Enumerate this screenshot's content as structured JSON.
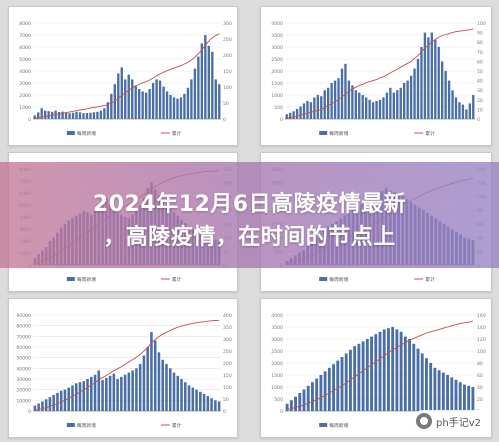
{
  "banner": {
    "line1": "2024年12月6日高陵疫情最新",
    "line2": "，高陵疫情，在时间的节点上"
  },
  "watermark": {
    "text": "ph手记v2"
  },
  "colors": {
    "bar": "#4a6fa5",
    "line": "#c0504d",
    "grid": "#e4e4e4",
    "axis": "#777777"
  },
  "chart_data": [
    {
      "type": "bar",
      "title": "",
      "left_ticks": [
        "8000",
        "7000",
        "6000",
        "5000",
        "4000",
        "3000",
        "2000",
        "1000",
        "0"
      ],
      "right_ticks": [
        "300",
        "250",
        "200",
        "150",
        "100",
        "50",
        "0"
      ],
      "ylim": [
        0,
        8000
      ],
      "y2lim": [
        0,
        300
      ],
      "legend": [
        "每周新增",
        "累计"
      ],
      "values": [
        300,
        550,
        900,
        700,
        650,
        600,
        700,
        580,
        620,
        500,
        480,
        520,
        600,
        550,
        480,
        500,
        520,
        560,
        600,
        700,
        900,
        1400,
        2100,
        2900,
        3800,
        4300,
        3300,
        3700,
        3300,
        2800,
        2500,
        2300,
        2200,
        2500,
        3000,
        3300,
        3200,
        2700,
        2300,
        2000,
        1800,
        1700,
        1800,
        2100,
        2600,
        3300,
        4200,
        5200,
        6300,
        7000,
        6100,
        5600,
        3300,
        2900
      ],
      "line_values": [
        2,
        4,
        6,
        8,
        10,
        12,
        14,
        16,
        18,
        20,
        22,
        24,
        26,
        28,
        30,
        32,
        34,
        36,
        38,
        40,
        42,
        45,
        50,
        56,
        64,
        74,
        82,
        90,
        97,
        103,
        108,
        113,
        117,
        122,
        128,
        135,
        141,
        146,
        151,
        155,
        159,
        163,
        167,
        172,
        177,
        184,
        193,
        204,
        216,
        230,
        243,
        254,
        261,
        267
      ]
    },
    {
      "type": "bar",
      "title": "",
      "left_ticks": [
        "4000",
        "3500",
        "3000",
        "2500",
        "2000",
        "1500",
        "1000",
        "500",
        "0"
      ],
      "right_ticks": [
        "100",
        "90",
        "80",
        "70",
        "60",
        "50",
        "40",
        "30",
        "20",
        "10",
        "0"
      ],
      "ylim": [
        0,
        4000
      ],
      "y2lim": [
        0,
        100
      ],
      "legend": [
        "每周新增",
        "累计"
      ],
      "values": [
        200,
        260,
        320,
        420,
        520,
        650,
        750,
        700,
        900,
        1000,
        950,
        1200,
        1300,
        1500,
        1600,
        1700,
        2100,
        2300,
        1600,
        1400,
        1200,
        1100,
        1000,
        900,
        800,
        700,
        750,
        800,
        900,
        1100,
        1300,
        1100,
        1200,
        1300,
        1500,
        1600,
        1800,
        2100,
        2500,
        3000,
        3600,
        3400,
        3600,
        3300,
        3000,
        2400,
        2000,
        1600,
        1200,
        900,
        700,
        600,
        400,
        650,
        1000
      ],
      "line_values": [
        1,
        1.5,
        2,
        3,
        4,
        5,
        6,
        7,
        8,
        9,
        10,
        12,
        14,
        16,
        18,
        20,
        23,
        26,
        29,
        31,
        33,
        35,
        36,
        38,
        39,
        40,
        41,
        43,
        44,
        46,
        48,
        50,
        52,
        54,
        56,
        58,
        60,
        63,
        66,
        70,
        74,
        77,
        80,
        83,
        85,
        87,
        88,
        89,
        90,
        91,
        91.5,
        92,
        92.5,
        93,
        94
      ]
    },
    {
      "type": "bar",
      "title": "",
      "left_ticks": [
        "8000",
        "7000",
        "6000",
        "5000",
        "4000",
        "3000",
        "2000",
        "1000",
        "0"
      ],
      "right_ticks": [
        "350",
        "300",
        "250",
        "200",
        "150",
        "100",
        "50",
        "0"
      ],
      "ylim": [
        0,
        8000
      ],
      "y2lim": [
        0,
        350
      ],
      "legend": [
        "每周新增",
        "累计"
      ],
      "values": [
        600,
        900,
        1200,
        1500,
        2000,
        2300,
        2700,
        3100,
        3400,
        3700,
        3900,
        4100,
        4300,
        4500,
        4400,
        4200,
        4600,
        4800,
        5200,
        5600,
        5000,
        4700,
        4400,
        4200,
        4000,
        3900,
        4200,
        4500,
        5000,
        5600,
        6400,
        6900,
        6300,
        5800,
        5400,
        5000,
        4700,
        4400,
        4100,
        3800,
        3500,
        3200,
        3000,
        2800,
        2600,
        2400,
        2300,
        2200,
        2100,
        2000
      ],
      "line_values": [
        5,
        10,
        15,
        20,
        27,
        34,
        42,
        51,
        60,
        70,
        80,
        90,
        100,
        110,
        119,
        128,
        138,
        148,
        158,
        170,
        180,
        189,
        198,
        206,
        214,
        222,
        230,
        238,
        247,
        256,
        266,
        277,
        286,
        294,
        301,
        307,
        313,
        318,
        322,
        326,
        329,
        332,
        334,
        336,
        338,
        340,
        341,
        342,
        343,
        344
      ]
    },
    {
      "type": "bar",
      "title": "",
      "left_ticks": [
        "3500",
        "3000",
        "2500",
        "2000",
        "1500",
        "1000",
        "500",
        "0"
      ],
      "right_ticks": [
        "140",
        "120",
        "100",
        "80",
        "60",
        "40",
        "20",
        "0"
      ],
      "ylim": [
        0,
        3500
      ],
      "y2lim": [
        0,
        140
      ],
      "legend": [
        "每周新增",
        "累计"
      ],
      "values": [
        150,
        250,
        350,
        450,
        550,
        700,
        850,
        1000,
        1150,
        1300,
        1400,
        1500,
        1600,
        1700,
        1800,
        1900,
        2000,
        2100,
        2200,
        2300,
        2400,
        2500,
        2600,
        2700,
        2800,
        2700,
        2650,
        2600,
        2500,
        2400,
        2300,
        2200,
        2100,
        2000,
        1900,
        1800,
        1700,
        1600,
        1500,
        1400,
        1300,
        1200,
        1100,
        1000,
        950,
        900
      ],
      "line_values": [
        2,
        4,
        6,
        8,
        10,
        12,
        14,
        17,
        20,
        23,
        26,
        29,
        32,
        35,
        38,
        41,
        44,
        47,
        50,
        53,
        56,
        60,
        64,
        68,
        72,
        76,
        80,
        84,
        88,
        91,
        94,
        97,
        100,
        103,
        106,
        109,
        111,
        113,
        115,
        117,
        119,
        121,
        123,
        124,
        125,
        126
      ]
    },
    {
      "type": "bar",
      "title": "",
      "left_ticks": [
        "90000",
        "80000",
        "70000",
        "60000",
        "50000",
        "40000",
        "30000",
        "20000",
        "10000",
        "0"
      ],
      "right_ticks": [
        "400",
        "350",
        "300",
        "250",
        "200",
        "150",
        "100",
        "50",
        "0"
      ],
      "ylim": [
        0,
        90000
      ],
      "y2lim": [
        0,
        400
      ],
      "legend": [
        "每周新增",
        "累计"
      ],
      "values": [
        5000,
        7000,
        9000,
        11000,
        13000,
        15000,
        17000,
        19000,
        20000,
        22000,
        24000,
        26000,
        27000,
        28000,
        30000,
        32000,
        34000,
        38000,
        29000,
        31000,
        33000,
        35000,
        30000,
        32000,
        34000,
        36000,
        38000,
        40000,
        44000,
        52000,
        60000,
        74000,
        66000,
        55000,
        48000,
        44000,
        40000,
        36000,
        33000,
        30000,
        27000,
        24000,
        22000,
        20000,
        18000,
        16000,
        14000,
        12000,
        10000,
        9000
      ],
      "line_values": [
        3,
        6,
        10,
        14,
        19,
        25,
        31,
        38,
        45,
        53,
        61,
        70,
        79,
        88,
        98,
        108,
        118,
        130,
        139,
        148,
        158,
        168,
        176,
        185,
        194,
        204,
        214,
        224,
        236,
        250,
        265,
        283,
        298,
        310,
        320,
        328,
        336,
        343,
        349,
        354,
        358,
        362,
        365,
        368,
        370,
        372,
        374,
        376,
        377,
        378
      ]
    },
    {
      "type": "bar",
      "title": "",
      "left_ticks": [
        "4000",
        "3500",
        "3000",
        "2500",
        "2000",
        "1500",
        "1000",
        "500",
        "0"
      ],
      "right_ticks": [
        "160",
        "140",
        "120",
        "100",
        "80",
        "60",
        "40",
        "20",
        "0"
      ],
      "ylim": [
        0,
        4000
      ],
      "y2lim": [
        0,
        160
      ],
      "legend": [
        "每周新增",
        "累计"
      ],
      "values": [
        300,
        450,
        600,
        750,
        900,
        1050,
        1200,
        1350,
        1500,
        1650,
        1800,
        1950,
        2100,
        2250,
        2400,
        2550,
        2700,
        2800,
        2900,
        3000,
        3100,
        3200,
        3300,
        3400,
        3450,
        3500,
        3400,
        3300,
        3100,
        3000,
        2800,
        2600,
        2400,
        2200,
        2000,
        1800,
        1700,
        1600,
        1500,
        1400,
        1300,
        1200,
        1100,
        1050,
        1000
      ],
      "line_values": [
        2,
        4,
        6,
        8,
        10,
        13,
        16,
        19,
        22,
        26,
        30,
        34,
        38,
        42,
        47,
        52,
        57,
        62,
        67,
        72,
        77,
        82,
        87,
        92,
        97,
        102,
        106,
        110,
        114,
        118,
        121,
        124,
        127,
        130,
        132,
        134,
        136,
        138,
        140,
        142,
        144,
        146,
        147,
        148,
        150
      ]
    }
  ]
}
